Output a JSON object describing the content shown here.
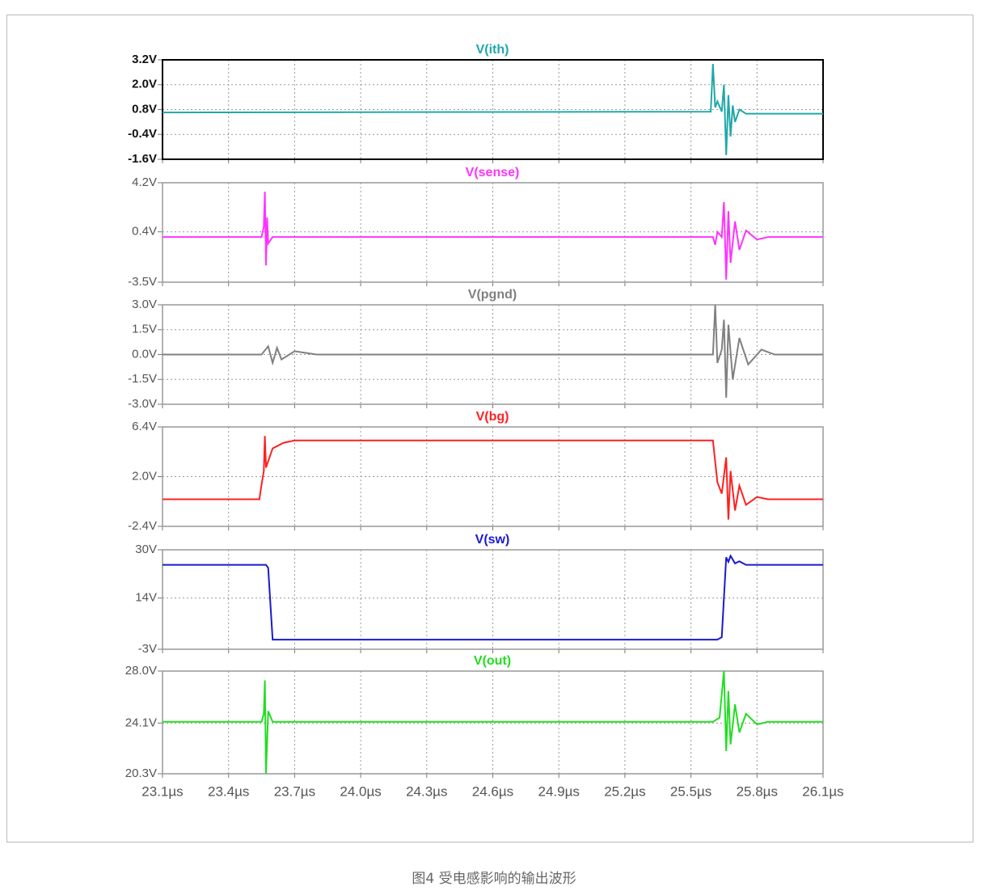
{
  "chart_data": [
    {
      "type": "line",
      "title": "V(ith)",
      "color": "#20a8a8",
      "x": [
        23.1,
        25.59,
        25.6,
        25.61,
        25.62,
        25.64,
        25.65,
        25.66,
        25.67,
        25.68,
        25.69,
        25.7,
        25.72,
        25.75,
        26.1
      ],
      "values": [
        0.66,
        0.7,
        3.0,
        0.9,
        1.2,
        0.7,
        2.0,
        -1.4,
        1.5,
        -0.5,
        1.0,
        0.2,
        0.8,
        0.6,
        0.6
      ],
      "ylim": [
        -1.6,
        3.2
      ],
      "yticks": [
        {
          "value": -1.6,
          "label": "-1.6V"
        },
        {
          "value": -0.4,
          "label": "-0.4V"
        },
        {
          "value": 0.8,
          "label": "0.8V"
        },
        {
          "value": 2.0,
          "label": "2.0V"
        },
        {
          "value": 3.2,
          "label": "3.2V"
        }
      ]
    },
    {
      "type": "line",
      "title": "V(sense)",
      "color": "#ff33ff",
      "x": [
        23.1,
        23.55,
        23.56,
        23.565,
        23.57,
        23.575,
        23.58,
        23.6,
        25.6,
        25.61,
        25.62,
        25.64,
        25.65,
        25.66,
        25.67,
        25.68,
        25.7,
        25.72,
        25.75,
        25.8,
        25.85,
        26.1
      ],
      "values": [
        0,
        0,
        0.8,
        3.5,
        -2.2,
        1.5,
        -0.5,
        0,
        0,
        -0.6,
        0.4,
        0,
        2.7,
        -3.3,
        2.0,
        -2.0,
        1.2,
        -1.0,
        0.5,
        -0.2,
        0,
        0
      ],
      "ylim": [
        -3.5,
        4.2
      ],
      "yticks": [
        {
          "value": -3.5,
          "label": "-3.5V"
        },
        {
          "value": 0.4,
          "label": "0.4V"
        },
        {
          "value": 4.2,
          "label": "4.2V"
        }
      ]
    },
    {
      "type": "line",
      "title": "V(pgnd)",
      "color": "#808080",
      "x": [
        23.1,
        23.55,
        23.58,
        23.6,
        23.62,
        23.64,
        23.7,
        23.8,
        25.6,
        25.61,
        25.62,
        25.64,
        25.65,
        25.66,
        25.67,
        25.69,
        25.72,
        25.76,
        25.82,
        25.88,
        26.1
      ],
      "values": [
        0,
        0,
        0.5,
        -0.5,
        0.4,
        -0.3,
        0.2,
        0,
        0,
        3.0,
        -0.5,
        0.3,
        2.1,
        -2.6,
        1.8,
        -1.5,
        1.0,
        -0.6,
        0.3,
        0,
        0
      ],
      "ylim": [
        -3.0,
        3.0
      ],
      "yticks": [
        {
          "value": -3.0,
          "label": "-3.0V"
        },
        {
          "value": -1.5,
          "label": "-1.5V"
        },
        {
          "value": 0,
          "label": "0.0V"
        },
        {
          "value": 1.5,
          "label": "1.5V"
        },
        {
          "value": 3.0,
          "label": "3.0V"
        }
      ]
    },
    {
      "type": "line",
      "title": "V(bg)",
      "color": "#ff2020",
      "x": [
        23.1,
        23.54,
        23.55,
        23.56,
        23.565,
        23.57,
        23.6,
        23.65,
        23.7,
        25.6,
        25.62,
        25.64,
        25.66,
        25.67,
        25.68,
        25.7,
        25.72,
        25.75,
        25.8,
        25.85,
        26.1
      ],
      "values": [
        0,
        0,
        1.3,
        2.5,
        5.6,
        2.8,
        4.5,
        5.0,
        5.2,
        5.2,
        1.5,
        0.5,
        3.7,
        -1.8,
        2.5,
        -1.0,
        1.2,
        -0.5,
        0.2,
        0,
        0
      ],
      "ylim": [
        -2.4,
        6.4
      ],
      "yticks": [
        {
          "value": -2.4,
          "label": "-2.4V"
        },
        {
          "value": 2.0,
          "label": "2.0V"
        },
        {
          "value": 6.4,
          "label": "6.4V"
        }
      ]
    },
    {
      "type": "line",
      "title": "V(sw)",
      "color": "#1a1ad0",
      "x": [
        23.1,
        23.57,
        23.58,
        23.6,
        25.62,
        25.64,
        25.66,
        25.67,
        25.68,
        25.7,
        25.72,
        25.75,
        26.1
      ],
      "values": [
        25,
        25,
        24,
        0.2,
        0.2,
        1,
        27.5,
        26,
        28,
        25.5,
        26.2,
        25,
        25
      ],
      "ylim": [
        -3,
        30
      ],
      "yticks": [
        {
          "value": -3,
          "label": "-3V"
        },
        {
          "value": 14,
          "label": "14V"
        },
        {
          "value": 30,
          "label": "30V"
        }
      ]
    },
    {
      "type": "line",
      "title": "V(out)",
      "color": "#22dd22",
      "x": [
        23.1,
        23.55,
        23.56,
        23.565,
        23.57,
        23.58,
        23.6,
        25.6,
        25.63,
        25.65,
        25.66,
        25.67,
        25.68,
        25.7,
        25.72,
        25.75,
        25.8,
        25.85,
        26.1
      ],
      "values": [
        24.2,
        24.2,
        24.8,
        27.3,
        20.3,
        25,
        24.2,
        24.2,
        24.5,
        28,
        22,
        26.5,
        22.5,
        25.5,
        23.4,
        24.8,
        24.0,
        24.2,
        24.2
      ],
      "ylim": [
        20.3,
        28.0
      ],
      "yticks": [
        {
          "value": 20.3,
          "label": "20.3V"
        },
        {
          "value": 24.1,
          "label": "24.1V"
        },
        {
          "value": 28.0,
          "label": "28.0V"
        }
      ],
      "xlim": [
        23.1,
        26.1
      ],
      "xticks": [
        {
          "value": 23.1,
          "label": "23.1µs"
        },
        {
          "value": 23.4,
          "label": "23.4µs"
        },
        {
          "value": 23.7,
          "label": "23.7µs"
        },
        {
          "value": 24.0,
          "label": "24.0µs"
        },
        {
          "value": 24.3,
          "label": "24.3µs"
        },
        {
          "value": 24.6,
          "label": "24.6µs"
        },
        {
          "value": 24.9,
          "label": "24.9µs"
        },
        {
          "value": 25.2,
          "label": "25.2µs"
        },
        {
          "value": 25.5,
          "label": "25.5µs"
        },
        {
          "value": 25.8,
          "label": "25.8µs"
        },
        {
          "value": 26.1,
          "label": "26.1µs"
        }
      ]
    }
  ],
  "caption": "图4 受电感影响的输出波形"
}
